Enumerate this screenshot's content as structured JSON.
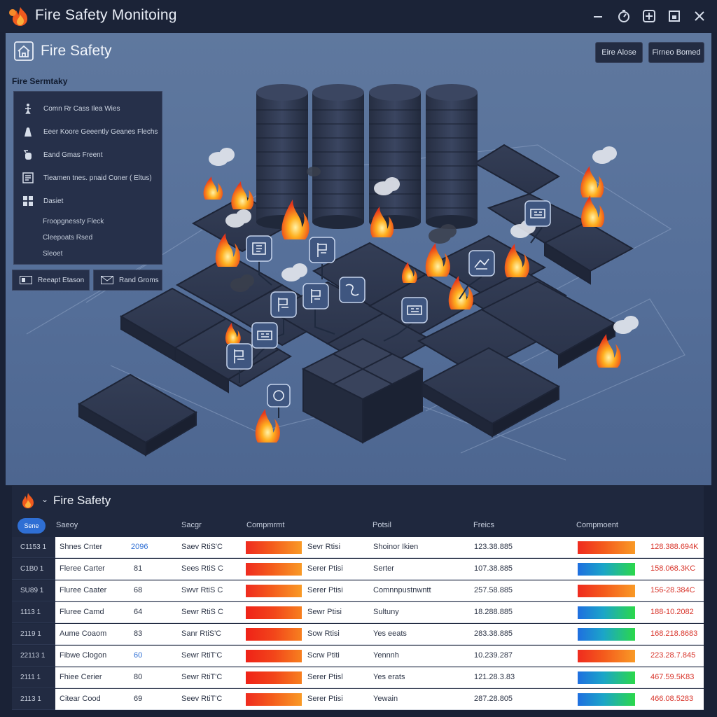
{
  "window": {
    "title": "Fire Safety Monitoing",
    "controls": [
      "minimize-icon",
      "timer-icon",
      "grid-icon",
      "maximize-icon",
      "close-icon"
    ]
  },
  "header": {
    "title": "Fire Safety",
    "buttons": [
      {
        "label": "Eire Alose"
      },
      {
        "label": "Firneo Bomed"
      }
    ]
  },
  "sidebar": {
    "title": "Fire Sermtaky",
    "items": [
      {
        "icon": "person-icon",
        "label": "Comn Rr Cass Ilea Wies"
      },
      {
        "icon": "alarm-icon",
        "label": "Eeer Koore Geeently Geanes Flechs"
      },
      {
        "icon": "extinguisher-icon",
        "label": "Eand Gmas Freent"
      },
      {
        "icon": "panel-icon",
        "label": "Tieamen tnes. pnaid Coner ( Eltus)"
      },
      {
        "icon": "grid-icon",
        "label": "Dasiet"
      }
    ],
    "sub_items": [
      "Froopgnessty Fleck",
      "Cleepoats Rsed",
      "Sleoet"
    ],
    "buttons": [
      {
        "icon": "report-icon",
        "label": "Reeapt Etason"
      },
      {
        "icon": "mail-icon",
        "label": "Rand Groms"
      }
    ]
  },
  "table": {
    "title": "Fire Safety",
    "pill": "Sene",
    "columns": [
      "Saeoy",
      "Sacgr",
      "Compmrmt",
      "Potsil",
      "Freics",
      "Compmoent"
    ],
    "rows": [
      {
        "id": "C1153 1",
        "name": "Shnes Cnter",
        "num": "2096",
        "sensor": "Saev RtiS'C",
        "bar1": "warm",
        "risk": "Sevr Rtisi",
        "type": "Shoinor Ikien",
        "value": "123.38.885",
        "bar2": "warm",
        "reading": "128.388.694K"
      },
      {
        "id": "C1B0 1",
        "name": "Fleree Carter",
        "num": "81",
        "sensor": "Sees RtiS C",
        "bar1": "warm",
        "risk": "Serer Ptisi",
        "type": "Serter",
        "value": "107.38.885",
        "bar2": "cool",
        "reading": "158.068.3KC"
      },
      {
        "id": "SU89 1",
        "name": "Fluree Caater",
        "num": "68",
        "sensor": "Swvr RtiS C",
        "bar1": "warm",
        "risk": "Serer Ptisi",
        "type": "Comnnpustnwntt",
        "value": "257.58.885",
        "bar2": "warm",
        "reading": "156-28.384C"
      },
      {
        "id": "1113 1",
        "name": "Fluree Camd",
        "num": "64",
        "sensor": "Sewr RtiS C",
        "bar1": "hot",
        "risk": "Sewr Ptisi",
        "type": "Sultuny",
        "value": "18.288.885",
        "bar2": "cool",
        "reading": "188-10.2082"
      },
      {
        "id": "2119 1",
        "name": "Aume Coaom",
        "num": "83",
        "sensor": "Sanr RtiS'C",
        "bar1": "hot",
        "risk": "Sow Rtisi",
        "type": "Yes eeats",
        "value": "283.38.885",
        "bar2": "cool",
        "reading": "168.218.8683"
      },
      {
        "id": "22113 1",
        "name": "Fibwe Clogon",
        "num": "60",
        "sensor": "Sewr RtiT'C",
        "bar1": "hot",
        "risk": "Scrw Ptiti",
        "type": "Yennnh",
        "value": "10.239.287",
        "bar2": "warm",
        "reading": "223.28.7.845"
      },
      {
        "id": "2111 1",
        "name": "Fhiee Cerier",
        "num": "80",
        "sensor": "Sewr RtiT'C",
        "bar1": "hot",
        "risk": "Serer Ptisl",
        "type": "Yes erats",
        "value": "121.28.3.83",
        "bar2": "cool",
        "reading": "467.59.5K83"
      },
      {
        "id": "2113 1",
        "name": "Citear Cood",
        "num": "69",
        "sensor": "Seev RtiT'C",
        "bar1": "warm",
        "risk": "Serer Ptisi",
        "type": "Yewain",
        "value": "287.28.805",
        "bar2": "cool",
        "reading": "466.08.5283"
      }
    ]
  },
  "colors": {
    "window_bg": "#1a2236",
    "main_bg": "#5a7299",
    "panel_bg": "#26304a",
    "accent_blue": "#2f6fd4",
    "fire_orange": "#f5701c",
    "alert_red": "#e03a2a"
  }
}
